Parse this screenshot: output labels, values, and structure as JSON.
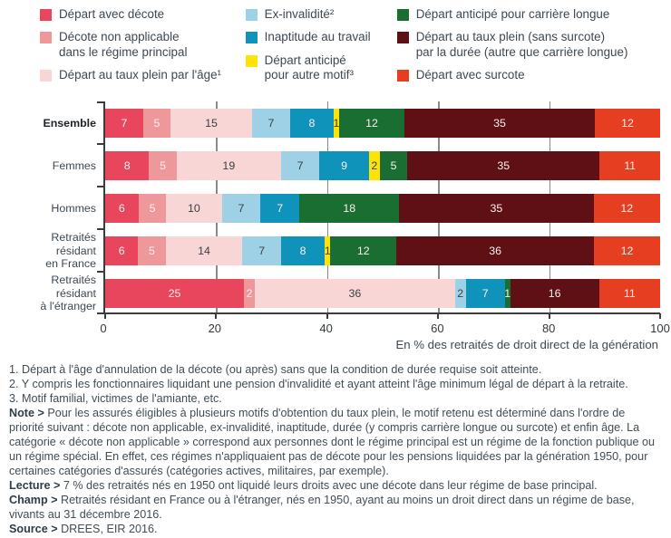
{
  "legend": {
    "columns": [
      {
        "items": [
          {
            "name": "depart-avec-decote",
            "label": "Départ avec décote",
            "color": "#e8465c"
          },
          {
            "name": "decote-non-applicable",
            "label": "Décote non applicable\ndans le régime principal",
            "color": "#ef989b"
          },
          {
            "name": "taux-plein-age",
            "label": "Départ au taux plein par l'âge¹",
            "color": "#f9d6d6"
          }
        ]
      },
      {
        "items": [
          {
            "name": "ex-invalidite",
            "label": "Ex-invalidité²",
            "color": "#9fd1e6"
          },
          {
            "name": "inaptitude",
            "label": "Inaptitude au travail",
            "color": "#1093ba"
          },
          {
            "name": "anticipe-autre-motif",
            "label": "Départ anticipé\npour autre motif³",
            "color": "#ffe206"
          }
        ]
      },
      {
        "items": [
          {
            "name": "anticipe-carriere-longue",
            "label": "Départ anticipé pour carrière longue",
            "color": "#1a6e31"
          },
          {
            "name": "taux-plein-duree",
            "label": "Départ au taux plein (sans surcote)\npar la durée (autre que carrière longue)",
            "color": "#5e1014"
          },
          {
            "name": "depart-avec-surcote",
            "label": "Départ avec surcote",
            "color": "#e63e20"
          }
        ]
      }
    ]
  },
  "chart_data": {
    "type": "bar",
    "orientation": "horizontal",
    "stacked": true,
    "categories": [
      "Ensemble",
      "Femmes",
      "Hommes",
      "Retraités résidant\nen France",
      "Retraités résidant\nà l'étranger"
    ],
    "series": [
      {
        "name": "Départ avec décote",
        "color": "#e8465c",
        "label_dark": false,
        "values": [
          7,
          8,
          6,
          6,
          25
        ]
      },
      {
        "name": "Décote non applicable dans le régime principal",
        "color": "#ef989b",
        "label_dark": false,
        "values": [
          5,
          5,
          5,
          5,
          2
        ]
      },
      {
        "name": "Départ au taux plein par l'âge",
        "color": "#f9d6d6",
        "label_dark": true,
        "values": [
          15,
          19,
          10,
          14,
          36
        ]
      },
      {
        "name": "Ex-invalidité",
        "color": "#9fd1e6",
        "label_dark": true,
        "values": [
          7,
          7,
          7,
          7,
          2
        ]
      },
      {
        "name": "Inaptitude au travail",
        "color": "#1093ba",
        "label_dark": false,
        "values": [
          8,
          9,
          7,
          8,
          7
        ]
      },
      {
        "name": "Départ anticipé pour autre motif",
        "color": "#ffe206",
        "label_dark": true,
        "values": [
          1,
          2,
          0,
          1,
          0
        ]
      },
      {
        "name": "Départ anticipé pour carrière longue",
        "color": "#1a6e31",
        "label_dark": false,
        "values": [
          12,
          5,
          18,
          12,
          1
        ]
      },
      {
        "name": "Départ au taux plein (sans surcote) par la durée (autre que carrière longue)",
        "color": "#5e1014",
        "label_dark": false,
        "values": [
          35,
          35,
          35,
          36,
          16
        ]
      },
      {
        "name": "Départ avec surcote",
        "color": "#e63e20",
        "label_dark": false,
        "values": [
          12,
          11,
          12,
          12,
          11
        ]
      }
    ],
    "xlim": [
      0,
      100
    ],
    "x_ticks": [
      0,
      20,
      40,
      60,
      80,
      100
    ],
    "grid": true,
    "axis_caption": "En % des retraités de droit direct de la génération",
    "legend_position": "top"
  },
  "footnotes": [
    "1. Départ à l'âge d'annulation de la décote (ou après) sans que la condition de durée requise soit atteinte.",
    "2. Y compris les fonctionnaires liquidant une pension d'invalidité et ayant atteint l'âge minimum légal de départ à la retraite.",
    "3. Motif familial, victimes de l'amiante, etc."
  ],
  "paragraphs": [
    {
      "label": "Note >",
      "text": "Pour les assurés éligibles à plusieurs motifs d'obtention du taux plein, le motif retenu est déterminé dans l'ordre de priorité suivant : décote non applicable, ex-invalidité, inaptitude, durée (y compris carrière longue ou surcote) et enfin âge. La catégorie « décote non applicable » correspond aux personnes dont le régime principal est un régime de la fonction publique ou un régime spécial. En effet, ces régimes n'appliquaient pas de décote pour les pensions liquidées par la génération 1950, pour certaines catégories d'assurés (catégories actives, militaires, par exemple)."
    },
    {
      "label": "Lecture >",
      "text": "7 % des retraités nés en 1950 ont liquidé leurs droits avec une décote dans leur régime de base principal."
    },
    {
      "label": "Champ >",
      "text": "Retraités résidant en France ou à l'étranger, nés en 1950, ayant au moins un droit direct dans un régime de base, vivants au 31 décembre 2016."
    },
    {
      "label": "Source >",
      "text": "DREES, EIR 2016."
    }
  ]
}
